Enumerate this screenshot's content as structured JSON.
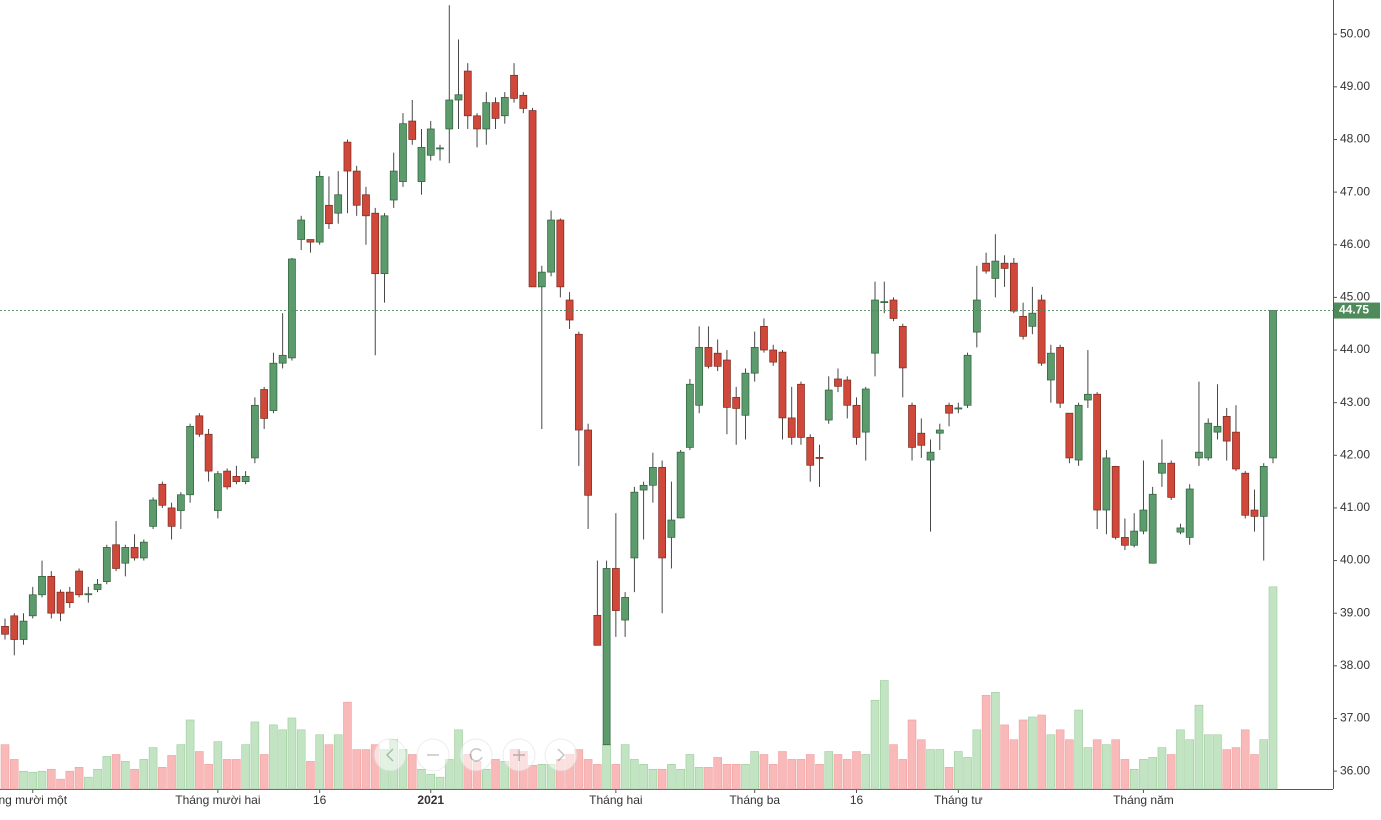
{
  "chart_data": {
    "type": "candlestick",
    "categories": [
      null,
      null,
      null,
      "ng mười một",
      null,
      null,
      null,
      null,
      null,
      null,
      null,
      null,
      null,
      null,
      null,
      null,
      null,
      null,
      null,
      null,
      null,
      null,
      null,
      "Tháng mười hai",
      null,
      null,
      null,
      null,
      null,
      null,
      null,
      null,
      null,
      null,
      "16",
      null,
      null,
      null,
      null,
      null,
      null,
      null,
      null,
      null,
      null,
      null,
      "2021",
      null,
      null,
      null,
      null,
      null,
      null,
      null,
      null,
      null,
      null,
      null,
      null,
      null,
      null,
      null,
      null,
      null,
      null,
      null,
      "Tháng hai",
      null,
      null,
      null,
      null,
      null,
      null,
      null,
      null,
      null,
      null,
      null,
      null,
      null,
      null,
      "Tháng ba",
      null,
      null,
      null,
      null,
      null,
      null,
      null,
      null,
      null,
      null,
      "16",
      null,
      null,
      null,
      null,
      null,
      null,
      null,
      null,
      null,
      null,
      "Tháng tư",
      null,
      null,
      null,
      null,
      null,
      null,
      null,
      null,
      null,
      null,
      null,
      null,
      null,
      null,
      null,
      null,
      null,
      null,
      null,
      "Tháng năm",
      null,
      null,
      null,
      null,
      null,
      null,
      null,
      null,
      null,
      null,
      null,
      null,
      null,
      null
    ],
    "open": [
      38.75,
      38.95,
      38.5,
      38.95,
      39.35,
      39.7,
      39.4,
      39.4,
      39.8,
      39.35,
      39.45,
      39.6,
      40.3,
      39.95,
      40.25,
      40.05,
      40.65,
      41.45,
      41.0,
      40.95,
      41.25,
      42.75,
      42.4,
      40.95,
      41.7,
      41.6,
      41.5,
      41.95,
      43.25,
      42.85,
      43.75,
      43.85,
      46.1,
      46.1,
      46.05,
      46.75,
      46.6,
      47.95,
      47.4,
      46.95,
      46.6,
      45.45,
      46.85,
      47.2,
      48.35,
      47.2,
      47.7,
      47.82,
      48.2,
      48.75,
      49.3,
      48.45,
      48.2,
      48.7,
      48.45,
      49.22,
      48.84,
      48.55,
      45.2,
      45.48,
      46.47,
      44.95,
      44.3,
      42.48,
      38.96,
      36.5,
      39.85,
      38.87,
      40.05,
      41.34,
      41.43,
      41.77,
      40.44,
      40.81,
      42.15,
      42.95,
      44.05,
      43.94,
      43.81,
      43.1,
      42.76,
      43.56,
      44.45,
      44.0,
      43.96,
      42.71,
      43.35,
      42.34,
      41.96,
      42.67,
      43.45,
      43.43,
      42.95,
      42.44,
      43.94,
      44.9,
      44.95,
      44.45,
      42.95,
      42.42,
      41.91,
      42.42,
      42.95,
      42.88,
      42.95,
      44.34,
      45.65,
      45.36,
      45.65,
      45.65,
      44.64,
      44.45,
      44.95,
      43.43,
      44.05,
      42.8,
      41.91,
      43.05,
      43.16,
      40.96,
      41.79,
      40.44,
      40.29,
      40.56,
      39.95,
      41.66,
      41.85,
      40.54,
      40.44,
      41.95,
      41.95,
      42.44,
      42.74,
      42.44,
      41.66,
      40.96,
      40.84,
      41.95
    ],
    "high": [
      38.9,
      39.0,
      39.0,
      39.5,
      40.0,
      39.8,
      39.45,
      39.5,
      39.85,
      39.5,
      39.65,
      40.3,
      40.75,
      40.3,
      40.5,
      40.4,
      41.2,
      41.5,
      41.1,
      41.3,
      42.6,
      42.8,
      42.5,
      41.7,
      41.75,
      41.8,
      41.7,
      43.1,
      43.3,
      43.95,
      44.7,
      45.75,
      46.55,
      46.1,
      47.4,
      47.3,
      47.4,
      48.0,
      47.5,
      47.1,
      46.7,
      46.6,
      47.75,
      48.5,
      48.75,
      48.2,
      48.35,
      47.9,
      50.55,
      49.9,
      49.45,
      48.5,
      48.9,
      48.8,
      48.9,
      49.45,
      48.9,
      48.6,
      45.6,
      46.65,
      46.5,
      45.1,
      44.35,
      42.6,
      40.0,
      40.0,
      40.9,
      39.4,
      41.4,
      41.5,
      42.05,
      41.9,
      41.5,
      42.1,
      43.45,
      44.45,
      44.45,
      44.2,
      44.0,
      43.3,
      43.65,
      44.35,
      44.6,
      44.1,
      44.0,
      43.3,
      43.4,
      42.4,
      42.2,
      43.5,
      43.65,
      43.5,
      43.1,
      43.3,
      45.3,
      45.3,
      45.0,
      44.5,
      43.0,
      42.7,
      42.3,
      42.6,
      43.0,
      43.0,
      43.95,
      45.6,
      45.85,
      46.2,
      45.8,
      45.75,
      44.9,
      45.2,
      45.05,
      44.1,
      44.1,
      42.8,
      43.0,
      44.0,
      43.2,
      42.1,
      41.8,
      40.8,
      40.9,
      41.9,
      41.4,
      42.3,
      41.9,
      40.7,
      41.45,
      43.4,
      42.7,
      43.35,
      42.9,
      42.95,
      41.7,
      41.35,
      41.85,
      44.75
    ],
    "low": [
      38.5,
      38.2,
      38.4,
      38.9,
      39.3,
      38.9,
      38.85,
      39.1,
      39.3,
      39.2,
      39.4,
      39.55,
      39.8,
      39.7,
      40.0,
      40.0,
      40.6,
      41.0,
      40.4,
      40.6,
      41.1,
      42.35,
      41.5,
      40.8,
      41.35,
      41.45,
      41.45,
      41.85,
      42.5,
      42.8,
      43.65,
      43.8,
      45.9,
      45.85,
      46.0,
      46.3,
      46.4,
      46.6,
      46.55,
      46.0,
      43.9,
      44.9,
      46.7,
      47.1,
      47.9,
      46.95,
      47.6,
      47.6,
      47.55,
      48.2,
      48.2,
      47.85,
      47.9,
      48.2,
      48.3,
      48.7,
      48.5,
      45.2,
      42.5,
      45.4,
      45.0,
      44.4,
      41.8,
      40.6,
      38.39,
      36.5,
      38.55,
      38.55,
      39.4,
      40.4,
      41.1,
      39.0,
      39.85,
      40.8,
      42.1,
      42.8,
      43.65,
      43.6,
      42.4,
      42.2,
      42.3,
      43.4,
      43.95,
      43.7,
      42.3,
      42.2,
      42.2,
      41.5,
      41.4,
      42.6,
      43.2,
      42.7,
      42.2,
      41.9,
      43.5,
      44.7,
      44.55,
      43.1,
      41.9,
      41.95,
      40.55,
      42.1,
      42.55,
      42.8,
      42.9,
      44.05,
      45.45,
      45.0,
      45.2,
      44.7,
      44.2,
      44.3,
      43.7,
      43.0,
      42.9,
      41.85,
      41.8,
      42.9,
      40.6,
      40.5,
      40.4,
      40.2,
      40.25,
      40.5,
      39.95,
      41.4,
      41.15,
      40.5,
      40.3,
      41.8,
      41.9,
      42.3,
      41.9,
      41.7,
      40.8,
      40.55,
      40.0,
      41.85
    ],
    "close": [
      38.6,
      38.5,
      38.85,
      39.35,
      39.7,
      39.0,
      39.0,
      39.2,
      39.35,
      39.37,
      39.55,
      40.25,
      39.85,
      40.25,
      40.05,
      40.35,
      41.15,
      41.05,
      40.65,
      41.25,
      42.55,
      42.4,
      41.7,
      41.65,
      41.4,
      41.5,
      41.6,
      42.95,
      42.7,
      43.75,
      43.9,
      45.73,
      46.47,
      46.05,
      47.3,
      46.4,
      46.95,
      47.4,
      46.75,
      46.55,
      45.45,
      46.55,
      47.4,
      48.3,
      48.0,
      47.85,
      48.2,
      47.84,
      48.75,
      48.85,
      48.45,
      48.2,
      48.7,
      48.4,
      48.8,
      48.78,
      48.59,
      45.2,
      45.48,
      46.47,
      45.2,
      44.57,
      42.48,
      41.24,
      38.39,
      39.85,
      39.05,
      39.3,
      41.3,
      41.43,
      41.77,
      40.05,
      40.77,
      42.06,
      43.35,
      44.05,
      43.69,
      43.69,
      42.91,
      42.89,
      43.56,
      44.05,
      44.0,
      43.77,
      42.71,
      42.34,
      42.34,
      41.81,
      41.94,
      43.24,
      43.31,
      42.95,
      42.34,
      43.26,
      44.95,
      44.92,
      44.6,
      43.66,
      42.15,
      42.19,
      42.06,
      42.48,
      42.8,
      42.9,
      43.9,
      44.95,
      45.5,
      45.69,
      45.55,
      44.74,
      44.26,
      44.7,
      43.75,
      43.94,
      42.99,
      41.95,
      42.95,
      43.16,
      40.96,
      41.95,
      40.44,
      40.29,
      40.56,
      40.96,
      41.26,
      41.85,
      41.2,
      40.62,
      41.36,
      42.06,
      42.61,
      42.55,
      42.27,
      41.74,
      40.86,
      40.84,
      41.79,
      44.75
    ],
    "volume": [
      45,
      30,
      18,
      17,
      18,
      20,
      10,
      18,
      22,
      12,
      20,
      33,
      35,
      28,
      20,
      30,
      42,
      22,
      34,
      45,
      70,
      38,
      25,
      48,
      30,
      30,
      45,
      68,
      35,
      65,
      60,
      72,
      60,
      28,
      55,
      45,
      55,
      88,
      40,
      40,
      45,
      40,
      50,
      40,
      35,
      20,
      15,
      12,
      30,
      60,
      35,
      28,
      20,
      30,
      28,
      40,
      38,
      24,
      25,
      25,
      30,
      35,
      40,
      30,
      25,
      45,
      25,
      45,
      30,
      25,
      20,
      20,
      25,
      20,
      35,
      22,
      22,
      32,
      25,
      25,
      25,
      38,
      35,
      25,
      38,
      30,
      30,
      35,
      25,
      38,
      35,
      30,
      38,
      35,
      90,
      110,
      45,
      30,
      70,
      50,
      40,
      40,
      22,
      38,
      32,
      60,
      95,
      98,
      65,
      50,
      70,
      73,
      75,
      55,
      60,
      50,
      80,
      42,
      50,
      45,
      50,
      30,
      20,
      30,
      32,
      42,
      35,
      60,
      50,
      85,
      55,
      55,
      40,
      42,
      60,
      35,
      50,
      205
    ],
    "up_color": "#5b9b6c",
    "down_color": "#d0483a",
    "volume_up_color": "#c3e4c3",
    "volume_down_color": "#f9b9b9",
    "ylim": [
      35.66,
      50.65
    ],
    "yticks": [
      {
        "value": 36,
        "label": "36.00"
      },
      {
        "value": 37,
        "label": "37.00"
      },
      {
        "value": 38,
        "label": "38.00"
      },
      {
        "value": 39,
        "label": "39.00"
      },
      {
        "value": 40,
        "label": "40.00"
      },
      {
        "value": 41,
        "label": "41.00"
      },
      {
        "value": 42,
        "label": "42.00"
      },
      {
        "value": 43,
        "label": "43.00"
      },
      {
        "value": 44,
        "label": "44.00"
      },
      {
        "value": 45,
        "label": "45.00"
      },
      {
        "value": 46,
        "label": "46.00"
      },
      {
        "value": 47,
        "label": "47.00"
      },
      {
        "value": 48,
        "label": "48.00"
      },
      {
        "value": 49,
        "label": "49.00"
      },
      {
        "value": 50,
        "label": "50.00"
      }
    ],
    "y2lim": [
      0,
      800
    ],
    "last_price": {
      "value": 44.75,
      "label": "44.75"
    },
    "grid": false
  }
}
